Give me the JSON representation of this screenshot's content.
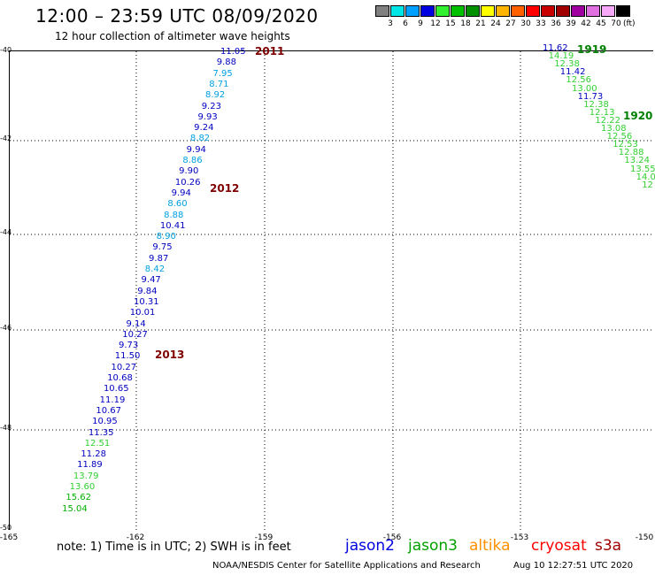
{
  "header": {
    "title": "12:00 – 23:59 UTC 08/09/2020",
    "subtitle": "12 hour collection of altimeter wave heights"
  },
  "colorbar": {
    "colors": [
      "#808080",
      "#00e6e6",
      "#00a0ff",
      "#0000e0",
      "#30f030",
      "#00c000",
      "#009000",
      "#ffff00",
      "#ffb400",
      "#ff6000",
      "#ff0000",
      "#c80000",
      "#a00000",
      "#a000a0",
      "#e070e0",
      "#f8a8f8",
      "#000000"
    ],
    "labels": [
      "3",
      "6",
      "9",
      "12",
      "15",
      "18",
      "21",
      "24",
      "27",
      "30",
      "33",
      "36",
      "39",
      "42",
      "45",
      "70"
    ],
    "unit": "(ft)"
  },
  "axes": {
    "lat_labels": [
      "-40",
      "-42",
      "-44",
      "-46",
      "-48",
      "-50"
    ],
    "lon_labels": [
      "-165",
      "-162",
      "-159",
      "-156",
      "-153",
      "-150"
    ]
  },
  "passes": [
    {
      "label": "2011",
      "color": "#800000"
    },
    {
      "label": "2012",
      "color": "#800000"
    },
    {
      "label": "2013",
      "color": "#800000"
    },
    {
      "label": "1919",
      "color": "#008000"
    },
    {
      "label": "1920",
      "color": "#008000"
    }
  ],
  "track_west": [
    {
      "v": "11.05",
      "c": "#0000c0"
    },
    {
      "v": "9.88",
      "c": "#0000c0"
    },
    {
      "v": "7.95",
      "c": "#00a0e0"
    },
    {
      "v": "8.71",
      "c": "#00a0e0"
    },
    {
      "v": "8.92",
      "c": "#00a0e0"
    },
    {
      "v": "9.23",
      "c": "#0000c0"
    },
    {
      "v": "9.93",
      "c": "#0000c0"
    },
    {
      "v": "9.24",
      "c": "#0000c0"
    },
    {
      "v": "8.82",
      "c": "#00a0e0"
    },
    {
      "v": "9.94",
      "c": "#0000c0"
    },
    {
      "v": "8.86",
      "c": "#00a0e0"
    },
    {
      "v": "9.90",
      "c": "#0000c0"
    },
    {
      "v": "10.26",
      "c": "#0000c0"
    },
    {
      "v": "9.94",
      "c": "#0000c0"
    },
    {
      "v": "8.60",
      "c": "#00a0e0"
    },
    {
      "v": "8.88",
      "c": "#00a0e0"
    },
    {
      "v": "10.41",
      "c": "#0000c0"
    },
    {
      "v": "8.90",
      "c": "#00a0e0"
    },
    {
      "v": "9.75",
      "c": "#0000c0"
    },
    {
      "v": "9.87",
      "c": "#0000c0"
    },
    {
      "v": "8.42",
      "c": "#00a0e0"
    },
    {
      "v": "9.47",
      "c": "#0000c0"
    },
    {
      "v": "9.84",
      "c": "#0000c0"
    },
    {
      "v": "10.31",
      "c": "#0000c0"
    },
    {
      "v": "10.01",
      "c": "#0000c0"
    },
    {
      "v": "9.14",
      "c": "#0000c0"
    },
    {
      "v": "10.27",
      "c": "#0000c0"
    },
    {
      "v": "9.73",
      "c": "#0000c0"
    },
    {
      "v": "11.50",
      "c": "#0000c0"
    },
    {
      "v": "10.27",
      "c": "#0000c0"
    },
    {
      "v": "10.68",
      "c": "#0000c0"
    },
    {
      "v": "10.65",
      "c": "#0000c0"
    },
    {
      "v": "11.19",
      "c": "#0000c0"
    },
    {
      "v": "10.67",
      "c": "#0000c0"
    },
    {
      "v": "10.95",
      "c": "#0000c0"
    },
    {
      "v": "11.35",
      "c": "#0000c0"
    },
    {
      "v": "12.51",
      "c": "#30d030"
    },
    {
      "v": "11.28",
      "c": "#0000c0"
    },
    {
      "v": "11.89",
      "c": "#0000c0"
    },
    {
      "v": "13.79",
      "c": "#30d030"
    },
    {
      "v": "13.60",
      "c": "#30d030"
    },
    {
      "v": "15.62",
      "c": "#00b000"
    },
    {
      "v": "15.04",
      "c": "#00b000"
    }
  ],
  "track_east": [
    {
      "v": "11.62",
      "c": "#0000c0"
    },
    {
      "v": "14.19",
      "c": "#30d030"
    },
    {
      "v": "12.38",
      "c": "#30d030"
    },
    {
      "v": "11.42",
      "c": "#0000c0"
    },
    {
      "v": "12.56",
      "c": "#30d030"
    },
    {
      "v": "13.00",
      "c": "#30d030"
    },
    {
      "v": "11.73",
      "c": "#0000c0"
    },
    {
      "v": "12.38",
      "c": "#30d030"
    },
    {
      "v": "12.13",
      "c": "#30d030"
    },
    {
      "v": "12.22",
      "c": "#30d030"
    },
    {
      "v": "13.08",
      "c": "#30d030"
    },
    {
      "v": "12.56",
      "c": "#30d030"
    },
    {
      "v": "12.53",
      "c": "#30d030"
    },
    {
      "v": "12.88",
      "c": "#30d030"
    },
    {
      "v": "13.24",
      "c": "#30d030"
    },
    {
      "v": "13.55",
      "c": "#30d030"
    },
    {
      "v": "14.0",
      "c": "#30d030"
    },
    {
      "v": "12",
      "c": "#30d030"
    }
  ],
  "note": "note:  1) Time is in UTC; 2) SWH is in feet",
  "legend": [
    {
      "label": "jason2",
      "color": "#0000e0"
    },
    {
      "label": "jason3",
      "color": "#00a000"
    },
    {
      "label": "altika",
      "color": "#ff9000"
    },
    {
      "label": "cryosat",
      "color": "#ff0000"
    },
    {
      "label": "s3a",
      "color": "#a00000"
    }
  ],
  "footer": {
    "credit": "NOAA/NESDIS Center for Satellite Applications and Research",
    "timestamp": "Aug 10 12:27:51 UTC 2020"
  }
}
